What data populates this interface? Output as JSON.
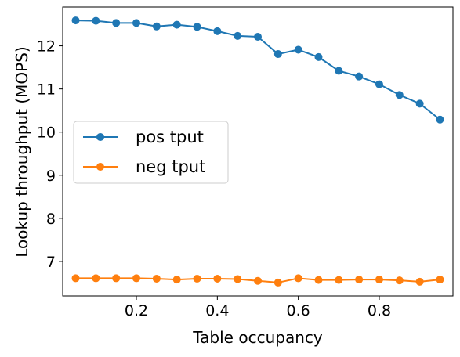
{
  "chart_data": {
    "type": "line",
    "xlabel": "Table occupancy",
    "ylabel": "Lookup throughput (MOPS)",
    "xlim": [
      0.018,
      0.982
    ],
    "ylim": [
      6.2,
      12.9
    ],
    "xticks": [
      0.2,
      0.4,
      0.6,
      0.8
    ],
    "yticks": [
      7,
      8,
      9,
      10,
      11,
      12
    ],
    "grid": false,
    "legend_position": "center-left",
    "x": [
      0.05,
      0.1,
      0.15,
      0.2,
      0.25,
      0.3,
      0.35,
      0.4,
      0.45,
      0.5,
      0.55,
      0.6,
      0.65,
      0.7,
      0.75,
      0.8,
      0.85,
      0.9,
      0.95
    ],
    "series": [
      {
        "name": "pos tput",
        "color": "#1f77b4",
        "values": [
          12.59,
          12.58,
          12.53,
          12.53,
          12.45,
          12.49,
          12.44,
          12.34,
          12.23,
          12.21,
          11.81,
          11.91,
          11.74,
          11.42,
          11.29,
          11.11,
          10.86,
          10.66,
          10.29
        ]
      },
      {
        "name": "neg tput",
        "color": "#ff7f0e",
        "values": [
          6.61,
          6.61,
          6.61,
          6.61,
          6.6,
          6.58,
          6.6,
          6.6,
          6.59,
          6.55,
          6.51,
          6.61,
          6.57,
          6.57,
          6.58,
          6.58,
          6.56,
          6.53,
          6.58
        ]
      }
    ]
  }
}
